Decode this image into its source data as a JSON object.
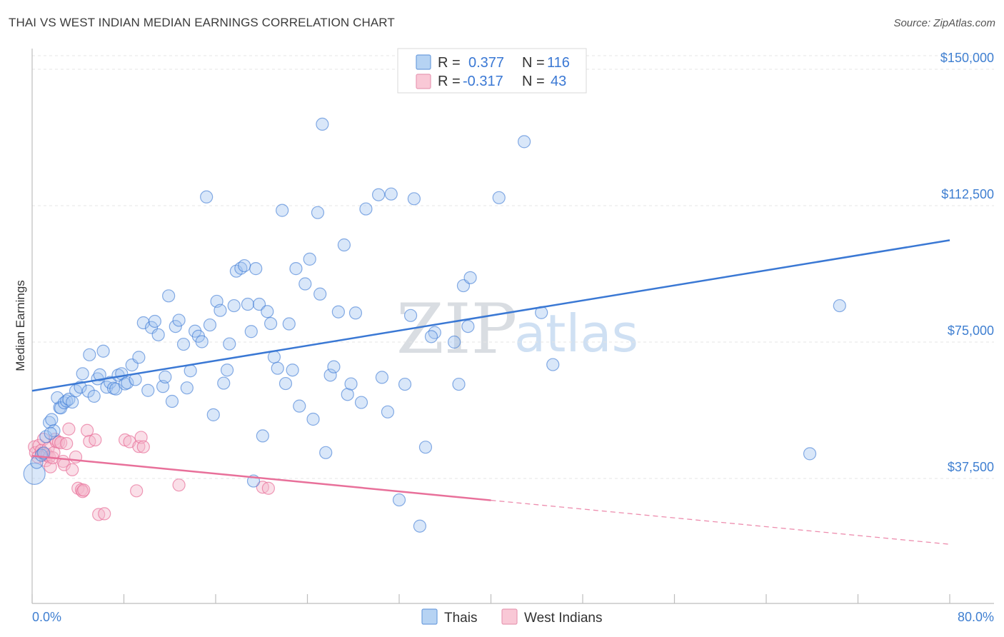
{
  "header": {
    "title": "THAI VS WEST INDIAN MEDIAN EARNINGS CORRELATION CHART",
    "source": "Source: ZipAtlas.com"
  },
  "watermark": {
    "zip": "ZIP",
    "atlas": "atlas"
  },
  "colors": {
    "blue": "#3a78d4",
    "blue_fill": "#9fc4ef",
    "pink": "#e8709a",
    "pink_fill": "#f5b8cc",
    "tick": "#3f7fd1",
    "grid": "#e6e6e6"
  },
  "legend": {
    "rows": [
      {
        "r_label": "R = ",
        "r_value": "0.377",
        "n_label": "N = ",
        "n_value": "116"
      },
      {
        "r_label": "R = ",
        "r_value": "-0.317",
        "n_label": "N = ",
        "n_value": "43"
      }
    ],
    "series_names": [
      "Thais",
      "West Indians"
    ]
  },
  "chart_data": {
    "type": "scatter",
    "title": "THAI VS WEST INDIAN MEDIAN EARNINGS CORRELATION CHART",
    "xlabel": "",
    "ylabel": "Median Earnings",
    "xlim": [
      0,
      80
    ],
    "ylim": [
      0,
      156000
    ],
    "x_tick_labels": [
      "0.0%",
      "80.0%"
    ],
    "y_ticks": [
      37500,
      75000,
      112500,
      150000
    ],
    "y_tick_labels": [
      "$37,500",
      "$75,000",
      "$112,500",
      "$150,000"
    ],
    "grid": true,
    "series": [
      {
        "name": "Thais",
        "r": 0.377,
        "n": 116,
        "trend": {
          "x0": 0,
          "y0": 61600,
          "x1": 80,
          "y1": 103000
        },
        "points": [
          [
            0.2,
            38800
          ],
          [
            0.4,
            41900
          ],
          [
            0.8,
            43900
          ],
          [
            1.0,
            44500
          ],
          [
            1.2,
            49000
          ],
          [
            1.5,
            52900
          ],
          [
            1.7,
            53700
          ],
          [
            1.9,
            50600
          ],
          [
            1.6,
            49900
          ],
          [
            2.4,
            57000
          ],
          [
            2.2,
            59700
          ],
          [
            2.5,
            56900
          ],
          [
            2.8,
            58300
          ],
          [
            3.0,
            58800
          ],
          [
            3.2,
            59300
          ],
          [
            3.5,
            58500
          ],
          [
            3.8,
            61600
          ],
          [
            4.2,
            62600
          ],
          [
            4.4,
            66300
          ],
          [
            4.9,
            61500
          ],
          [
            5.0,
            71500
          ],
          [
            5.4,
            60100
          ],
          [
            5.7,
            64900
          ],
          [
            5.9,
            66000
          ],
          [
            6.2,
            72500
          ],
          [
            6.5,
            62600
          ],
          [
            6.8,
            63900
          ],
          [
            7.1,
            62300
          ],
          [
            7.3,
            62100
          ],
          [
            7.5,
            65900
          ],
          [
            7.8,
            66300
          ],
          [
            8.1,
            63500
          ],
          [
            8.3,
            63800
          ],
          [
            8.7,
            68700
          ],
          [
            9.0,
            64700
          ],
          [
            9.3,
            70800
          ],
          [
            9.7,
            80300
          ],
          [
            10.1,
            61700
          ],
          [
            10.4,
            79000
          ],
          [
            10.7,
            80700
          ],
          [
            11.0,
            77000
          ],
          [
            11.4,
            62800
          ],
          [
            11.6,
            65400
          ],
          [
            11.9,
            87700
          ],
          [
            12.2,
            58700
          ],
          [
            12.5,
            79300
          ],
          [
            12.8,
            81000
          ],
          [
            13.2,
            74400
          ],
          [
            13.5,
            62400
          ],
          [
            13.8,
            67100
          ],
          [
            14.2,
            78000
          ],
          [
            14.5,
            76600
          ],
          [
            14.8,
            75100
          ],
          [
            15.2,
            114900
          ],
          [
            15.5,
            79700
          ],
          [
            15.8,
            55000
          ],
          [
            16.1,
            86200
          ],
          [
            16.4,
            83700
          ],
          [
            16.7,
            63700
          ],
          [
            17.0,
            67300
          ],
          [
            17.2,
            74500
          ],
          [
            17.6,
            85000
          ],
          [
            17.8,
            94500
          ],
          [
            18.2,
            95300
          ],
          [
            18.5,
            96000
          ],
          [
            18.8,
            85400
          ],
          [
            19.1,
            77900
          ],
          [
            19.5,
            95200
          ],
          [
            19.8,
            85400
          ],
          [
            20.1,
            49200
          ],
          [
            20.5,
            83400
          ],
          [
            20.8,
            80100
          ],
          [
            21.1,
            70900
          ],
          [
            21.4,
            67800
          ],
          [
            21.8,
            111200
          ],
          [
            22.1,
            63600
          ],
          [
            22.4,
            80000
          ],
          [
            22.7,
            67300
          ],
          [
            23.0,
            95200
          ],
          [
            23.3,
            57400
          ],
          [
            23.8,
            91000
          ],
          [
            24.2,
            97800
          ],
          [
            24.5,
            53800
          ],
          [
            24.9,
            110600
          ],
          [
            25.1,
            88200
          ],
          [
            25.6,
            44600
          ],
          [
            26.0,
            65900
          ],
          [
            26.3,
            68200
          ],
          [
            26.7,
            83300
          ],
          [
            27.2,
            101700
          ],
          [
            27.5,
            60600
          ],
          [
            27.8,
            63500
          ],
          [
            28.2,
            83000
          ],
          [
            28.7,
            58400
          ],
          [
            29.1,
            111600
          ],
          [
            30.2,
            115500
          ],
          [
            30.5,
            65300
          ],
          [
            31.0,
            55800
          ],
          [
            31.3,
            115700
          ],
          [
            32.0,
            31600
          ],
          [
            32.5,
            63400
          ],
          [
            33.0,
            82300
          ],
          [
            33.3,
            114400
          ],
          [
            34.3,
            46100
          ],
          [
            35.1,
            77600
          ],
          [
            36.8,
            75000
          ],
          [
            37.2,
            63400
          ],
          [
            37.6,
            90500
          ],
          [
            38.0,
            79300
          ],
          [
            38.2,
            92700
          ],
          [
            40.7,
            114700
          ],
          [
            42.9,
            130100
          ],
          [
            44.4,
            83100
          ],
          [
            45.4,
            68800
          ],
          [
            67.8,
            44300
          ],
          [
            70.4,
            85000
          ],
          [
            19.3,
            36800
          ],
          [
            33.8,
            24400
          ],
          [
            34.8,
            76500
          ],
          [
            25.3,
            134900
          ]
        ]
      },
      {
        "name": "West Indians",
        "r": -0.317,
        "n": 43,
        "trend": {
          "x0": 0,
          "y0": 43700,
          "x1": 40,
          "y1": 31500,
          "dashed_to": {
            "x": 80,
            "y": 19400
          }
        },
        "points": [
          [
            0.2,
            46200
          ],
          [
            0.3,
            44600
          ],
          [
            0.5,
            43400
          ],
          [
            0.6,
            46600
          ],
          [
            0.8,
            45200
          ],
          [
            0.9,
            44400
          ],
          [
            1.0,
            48300
          ],
          [
            1.1,
            43900
          ],
          [
            1.2,
            42400
          ],
          [
            1.3,
            44100
          ],
          [
            1.4,
            45800
          ],
          [
            1.5,
            43400
          ],
          [
            1.6,
            40700
          ],
          [
            1.8,
            43200
          ],
          [
            1.9,
            44600
          ],
          [
            2.0,
            48300
          ],
          [
            2.1,
            47600
          ],
          [
            2.3,
            47500
          ],
          [
            2.5,
            47300
          ],
          [
            2.7,
            42200
          ],
          [
            2.8,
            41300
          ],
          [
            3.0,
            47100
          ],
          [
            3.2,
            51100
          ],
          [
            3.5,
            39900
          ],
          [
            3.8,
            43400
          ],
          [
            4.0,
            34800
          ],
          [
            4.3,
            34400
          ],
          [
            4.4,
            33900
          ],
          [
            4.5,
            34300
          ],
          [
            4.8,
            50700
          ],
          [
            5.0,
            47700
          ],
          [
            5.5,
            48100
          ],
          [
            5.8,
            27600
          ],
          [
            6.3,
            27800
          ],
          [
            8.1,
            48100
          ],
          [
            8.5,
            47600
          ],
          [
            9.1,
            34100
          ],
          [
            9.3,
            46300
          ],
          [
            9.5,
            48800
          ],
          [
            9.7,
            46200
          ],
          [
            12.8,
            35700
          ],
          [
            20.1,
            35100
          ],
          [
            20.6,
            34800
          ]
        ]
      }
    ]
  }
}
